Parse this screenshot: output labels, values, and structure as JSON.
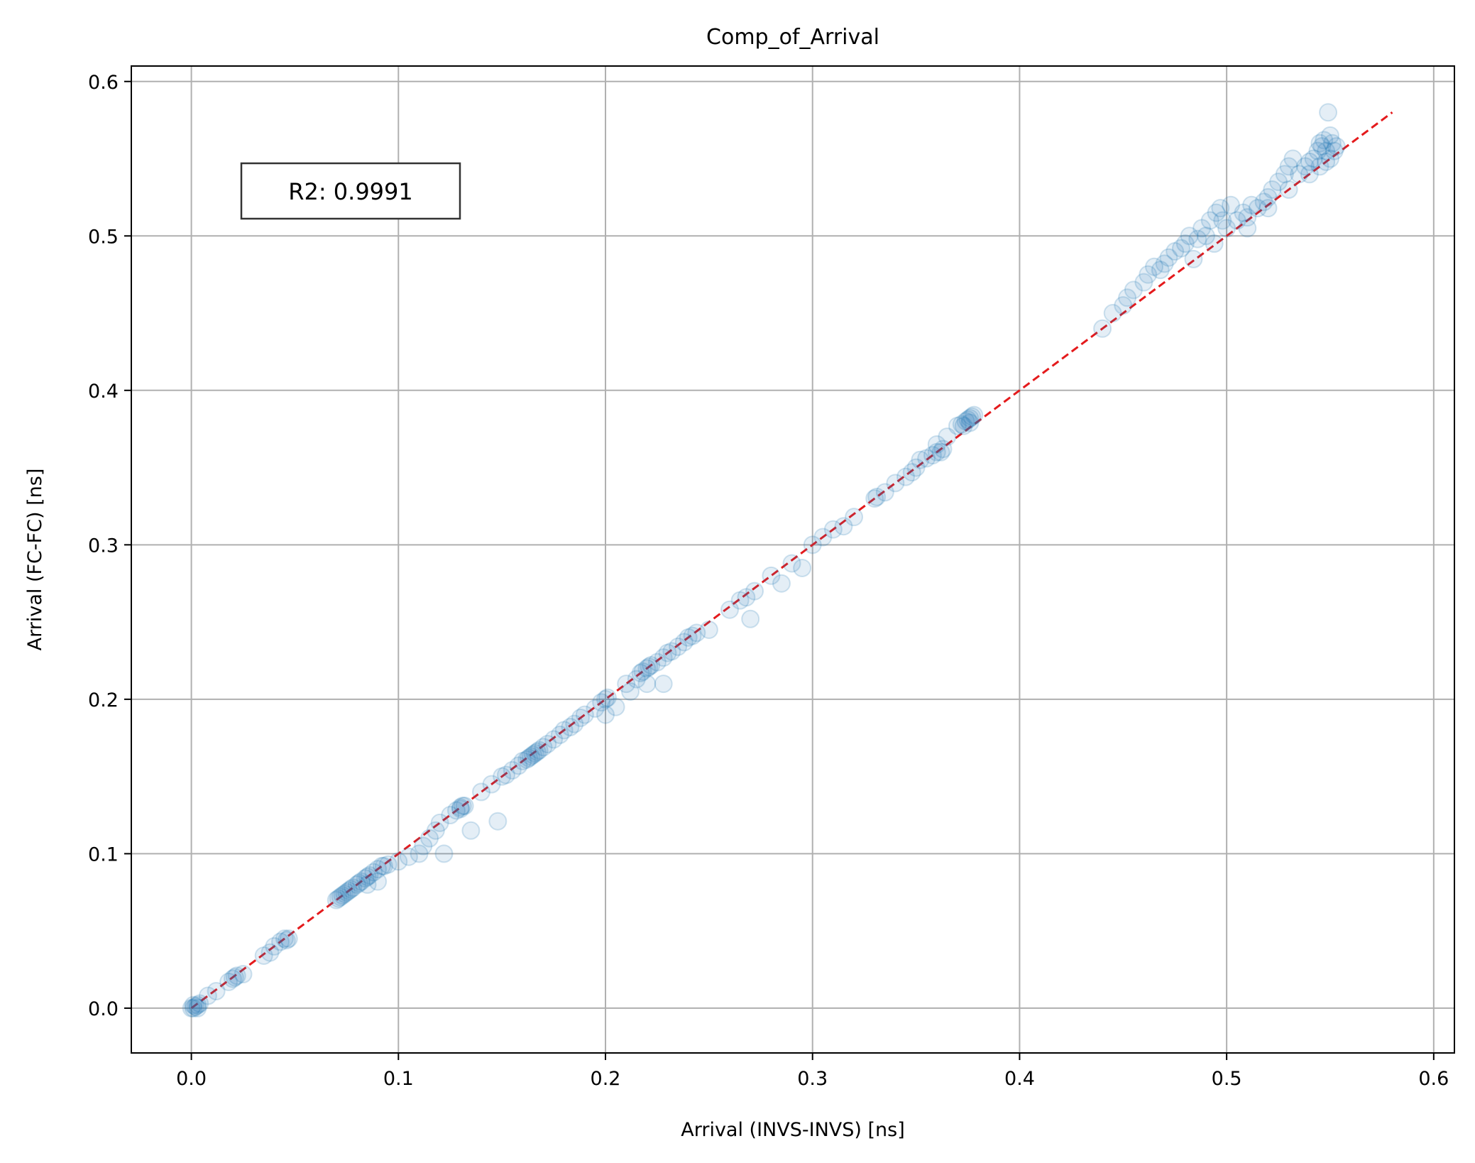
{
  "chart_data": {
    "type": "scatter",
    "title": "Comp_of_Arrival",
    "xlabel": "Arrival (INVS-INVS) [ns]",
    "ylabel": "Arrival (FC-FC) [ns]",
    "xlim": [
      -0.029,
      0.61
    ],
    "ylim": [
      -0.029,
      0.61
    ],
    "xticks": [
      "0.0",
      "0.1",
      "0.2",
      "0.3",
      "0.4",
      "0.5",
      "0.6"
    ],
    "yticks": [
      "0.0",
      "0.1",
      "0.2",
      "0.3",
      "0.4",
      "0.5",
      "0.6"
    ],
    "grid": true,
    "annotation": "R2: 0.9991",
    "point_color": "#1f77b4",
    "point_alpha": 0.12,
    "reference_line": {
      "style": "dashed",
      "color": "#e41a1c",
      "from": [
        0.0,
        0.0
      ],
      "to": [
        0.58,
        0.58
      ]
    },
    "series": [
      {
        "points": [
          [
            0.0,
            0.0
          ],
          [
            0.001,
            0.0
          ],
          [
            0.002,
            0.001
          ],
          [
            0.003,
            0.002
          ],
          [
            0.004,
            0.003
          ],
          [
            0.001,
            0.002
          ],
          [
            0.003,
            0.0
          ],
          [
            0.008,
            0.008
          ],
          [
            0.012,
            0.011
          ],
          [
            0.018,
            0.017
          ],
          [
            0.02,
            0.019
          ],
          [
            0.021,
            0.02
          ],
          [
            0.022,
            0.021
          ],
          [
            0.025,
            0.022
          ],
          [
            0.035,
            0.034
          ],
          [
            0.038,
            0.036
          ],
          [
            0.04,
            0.04
          ],
          [
            0.043,
            0.043
          ],
          [
            0.045,
            0.045
          ],
          [
            0.046,
            0.044
          ],
          [
            0.047,
            0.045
          ],
          [
            0.07,
            0.07
          ],
          [
            0.071,
            0.071
          ],
          [
            0.072,
            0.072
          ],
          [
            0.073,
            0.073
          ],
          [
            0.074,
            0.074
          ],
          [
            0.075,
            0.075
          ],
          [
            0.076,
            0.076
          ],
          [
            0.077,
            0.077
          ],
          [
            0.078,
            0.078
          ],
          [
            0.08,
            0.08
          ],
          [
            0.081,
            0.081
          ],
          [
            0.082,
            0.082
          ],
          [
            0.084,
            0.084
          ],
          [
            0.085,
            0.085
          ],
          [
            0.086,
            0.086
          ],
          [
            0.088,
            0.088
          ],
          [
            0.09,
            0.09
          ],
          [
            0.092,
            0.092
          ],
          [
            0.093,
            0.092
          ],
          [
            0.085,
            0.08
          ],
          [
            0.09,
            0.082
          ],
          [
            0.095,
            0.093
          ],
          [
            0.1,
            0.095
          ],
          [
            0.105,
            0.098
          ],
          [
            0.11,
            0.1
          ],
          [
            0.112,
            0.105
          ],
          [
            0.115,
            0.11
          ],
          [
            0.118,
            0.115
          ],
          [
            0.12,
            0.12
          ],
          [
            0.122,
            0.1
          ],
          [
            0.125,
            0.125
          ],
          [
            0.128,
            0.128
          ],
          [
            0.13,
            0.13
          ],
          [
            0.131,
            0.131
          ],
          [
            0.132,
            0.131
          ],
          [
            0.13,
            0.129
          ],
          [
            0.135,
            0.115
          ],
          [
            0.148,
            0.121
          ],
          [
            0.14,
            0.14
          ],
          [
            0.145,
            0.145
          ],
          [
            0.15,
            0.15
          ],
          [
            0.152,
            0.151
          ],
          [
            0.155,
            0.154
          ],
          [
            0.158,
            0.157
          ],
          [
            0.16,
            0.16
          ],
          [
            0.162,
            0.161
          ],
          [
            0.163,
            0.162
          ],
          [
            0.164,
            0.163
          ],
          [
            0.165,
            0.164
          ],
          [
            0.166,
            0.165
          ],
          [
            0.167,
            0.166
          ],
          [
            0.168,
            0.167
          ],
          [
            0.17,
            0.169
          ],
          [
            0.172,
            0.171
          ],
          [
            0.175,
            0.174
          ],
          [
            0.178,
            0.177
          ],
          [
            0.18,
            0.18
          ],
          [
            0.183,
            0.182
          ],
          [
            0.185,
            0.184
          ],
          [
            0.188,
            0.188
          ],
          [
            0.19,
            0.19
          ],
          [
            0.195,
            0.194
          ],
          [
            0.198,
            0.198
          ],
          [
            0.2,
            0.2
          ],
          [
            0.201,
            0.201
          ],
          [
            0.2,
            0.19
          ],
          [
            0.205,
            0.195
          ],
          [
            0.21,
            0.21
          ],
          [
            0.212,
            0.205
          ],
          [
            0.215,
            0.213
          ],
          [
            0.217,
            0.217
          ],
          [
            0.218,
            0.218
          ],
          [
            0.22,
            0.22
          ],
          [
            0.221,
            0.221
          ],
          [
            0.222,
            0.222
          ],
          [
            0.225,
            0.224
          ],
          [
            0.228,
            0.227
          ],
          [
            0.23,
            0.23
          ],
          [
            0.232,
            0.231
          ],
          [
            0.235,
            0.234
          ],
          [
            0.238,
            0.237
          ],
          [
            0.24,
            0.24
          ],
          [
            0.242,
            0.241
          ],
          [
            0.244,
            0.243
          ],
          [
            0.22,
            0.21
          ],
          [
            0.228,
            0.21
          ],
          [
            0.25,
            0.245
          ],
          [
            0.26,
            0.258
          ],
          [
            0.265,
            0.264
          ],
          [
            0.268,
            0.266
          ],
          [
            0.27,
            0.252
          ],
          [
            0.272,
            0.27
          ],
          [
            0.28,
            0.28
          ],
          [
            0.285,
            0.275
          ],
          [
            0.29,
            0.288
          ],
          [
            0.295,
            0.285
          ],
          [
            0.3,
            0.3
          ],
          [
            0.305,
            0.305
          ],
          [
            0.31,
            0.31
          ],
          [
            0.315,
            0.312
          ],
          [
            0.32,
            0.318
          ],
          [
            0.33,
            0.33
          ],
          [
            0.331,
            0.331
          ],
          [
            0.335,
            0.334
          ],
          [
            0.34,
            0.34
          ],
          [
            0.345,
            0.344
          ],
          [
            0.348,
            0.347
          ],
          [
            0.35,
            0.35
          ],
          [
            0.352,
            0.355
          ],
          [
            0.355,
            0.356
          ],
          [
            0.358,
            0.358
          ],
          [
            0.36,
            0.36
          ],
          [
            0.362,
            0.36
          ],
          [
            0.363,
            0.362
          ],
          [
            0.36,
            0.365
          ],
          [
            0.365,
            0.37
          ],
          [
            0.37,
            0.377
          ],
          [
            0.372,
            0.378
          ],
          [
            0.374,
            0.38
          ],
          [
            0.375,
            0.381
          ],
          [
            0.376,
            0.382
          ],
          [
            0.377,
            0.383
          ],
          [
            0.378,
            0.384
          ],
          [
            0.376,
            0.379
          ],
          [
            0.373,
            0.377
          ],
          [
            0.44,
            0.44
          ],
          [
            0.445,
            0.45
          ],
          [
            0.45,
            0.455
          ],
          [
            0.452,
            0.46
          ],
          [
            0.455,
            0.465
          ],
          [
            0.46,
            0.47
          ],
          [
            0.462,
            0.475
          ],
          [
            0.465,
            0.48
          ],
          [
            0.468,
            0.478
          ],
          [
            0.47,
            0.482
          ],
          [
            0.472,
            0.486
          ],
          [
            0.475,
            0.49
          ],
          [
            0.478,
            0.492
          ],
          [
            0.48,
            0.495
          ],
          [
            0.482,
            0.5
          ],
          [
            0.484,
            0.485
          ],
          [
            0.486,
            0.498
          ],
          [
            0.488,
            0.505
          ],
          [
            0.49,
            0.5
          ],
          [
            0.492,
            0.51
          ],
          [
            0.494,
            0.495
          ],
          [
            0.495,
            0.515
          ],
          [
            0.497,
            0.518
          ],
          [
            0.498,
            0.51
          ],
          [
            0.5,
            0.505
          ],
          [
            0.502,
            0.52
          ],
          [
            0.505,
            0.51
          ],
          [
            0.508,
            0.515
          ],
          [
            0.51,
            0.505
          ],
          [
            0.512,
            0.52
          ],
          [
            0.515,
            0.518
          ],
          [
            0.518,
            0.522
          ],
          [
            0.52,
            0.525
          ],
          [
            0.522,
            0.53
          ],
          [
            0.525,
            0.535
          ],
          [
            0.528,
            0.54
          ],
          [
            0.53,
            0.545
          ],
          [
            0.532,
            0.55
          ],
          [
            0.535,
            0.54
          ],
          [
            0.538,
            0.545
          ],
          [
            0.54,
            0.548
          ],
          [
            0.542,
            0.55
          ],
          [
            0.544,
            0.555
          ],
          [
            0.545,
            0.56
          ],
          [
            0.546,
            0.558
          ],
          [
            0.547,
            0.562
          ],
          [
            0.548,
            0.555
          ],
          [
            0.549,
            0.58
          ],
          [
            0.55,
            0.565
          ],
          [
            0.551,
            0.56
          ],
          [
            0.552,
            0.555
          ],
          [
            0.553,
            0.558
          ],
          [
            0.55,
            0.55
          ],
          [
            0.548,
            0.548
          ],
          [
            0.545,
            0.545
          ],
          [
            0.54,
            0.54
          ],
          [
            0.53,
            0.53
          ],
          [
            0.52,
            0.518
          ],
          [
            0.51,
            0.512
          ]
        ]
      }
    ]
  }
}
